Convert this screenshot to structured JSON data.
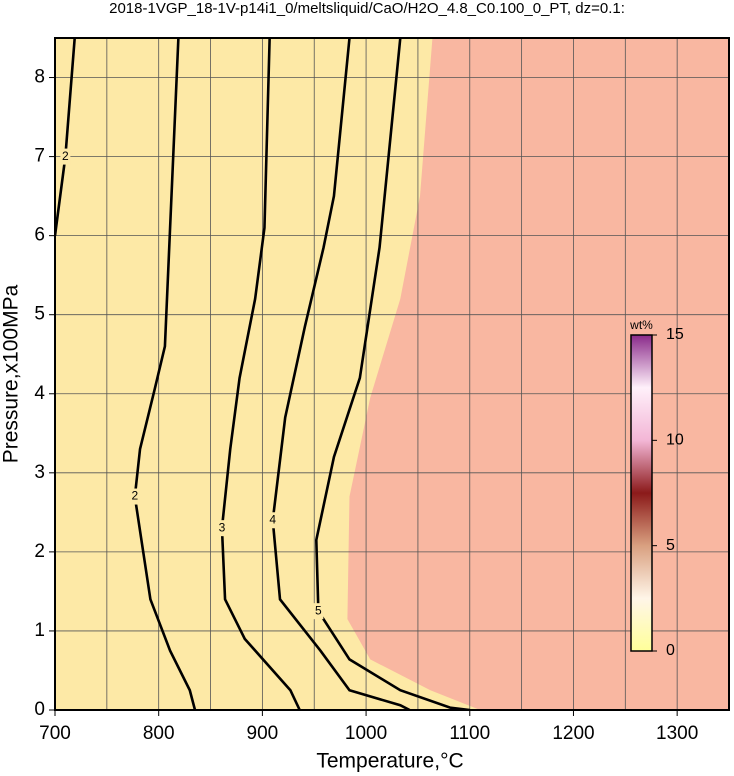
{
  "chart_data": {
    "type": "contour",
    "title": "2018-1VGP_18-1V-p14i1_0/meltsliquid/CaO/H2O_4.8_C0.100_0_PT, dz=0.1:",
    "x_label": "Temperature,°C",
    "y_label": "Pressure,x100MPa",
    "xlim": [
      700,
      1350
    ],
    "ylim": [
      0,
      8.5
    ],
    "xticks": [
      700,
      800,
      900,
      1000,
      1100,
      1200,
      1300
    ],
    "yticks": [
      0,
      1,
      2,
      3,
      4,
      5,
      6,
      7,
      8
    ],
    "xgrid": [
      750,
      850,
      950,
      1050,
      1150,
      1250
    ],
    "grid": true,
    "background": "#fde9a6",
    "regions": [
      {
        "color": "#f9b7a1",
        "x": [
          1064,
          1052,
          1033,
          1004,
          984,
          982,
          1004,
          1062,
          1110
        ],
        "y": [
          8.5,
          6.5,
          5.2,
          3.95,
          2.7,
          1.15,
          0.64,
          0.25,
          0
        ]
      }
    ],
    "series": [
      {
        "name": "2",
        "color": "#000000",
        "x": [
          719,
          710,
          700
        ],
        "y": [
          8.5,
          7,
          6
        ]
      },
      {
        "name": "2",
        "color": "#000000",
        "x": [
          819,
          806,
          796,
          782,
          777,
          792,
          811,
          830,
          835
        ],
        "y": [
          8.5,
          4.6,
          4.05,
          3.3,
          2.7,
          1.4,
          0.75,
          0.25,
          0
        ]
      },
      {
        "name": "3",
        "color": "#000000",
        "x": [
          907,
          902,
          893,
          878,
          869,
          861,
          864,
          883,
          927,
          936
        ],
        "y": [
          8.5,
          6.1,
          5.2,
          4.2,
          3.3,
          2.3,
          1.4,
          0.9,
          0.25,
          0
        ]
      },
      {
        "name": "4",
        "color": "#000000",
        "x": [
          984,
          969,
          959,
          941,
          922,
          910,
          917,
          956,
          984,
          1033,
          1042
        ],
        "y": [
          8.5,
          6.5,
          5.85,
          4.85,
          3.7,
          2.4,
          1.4,
          0.75,
          0.25,
          0.06,
          0
        ]
      },
      {
        "name": "5",
        "color": "#000000",
        "x": [
          1033,
          1013,
          994,
          969,
          952,
          954,
          984,
          1033,
          1081,
          1100
        ],
        "y": [
          8.5,
          5.85,
          4.2,
          3.2,
          2.15,
          1.25,
          0.64,
          0.25,
          0.03,
          0
        ]
      }
    ],
    "colorbar": {
      "label": "wt%",
      "lim": [
        0,
        15
      ],
      "ticks": [
        0,
        5,
        10,
        15
      ],
      "colors": [
        "#ffff99",
        "#fff5e8",
        "#d9a080",
        "#8b1a1a",
        "#f3b6d6",
        "#fff0fa",
        "#8a2a8a"
      ]
    }
  }
}
